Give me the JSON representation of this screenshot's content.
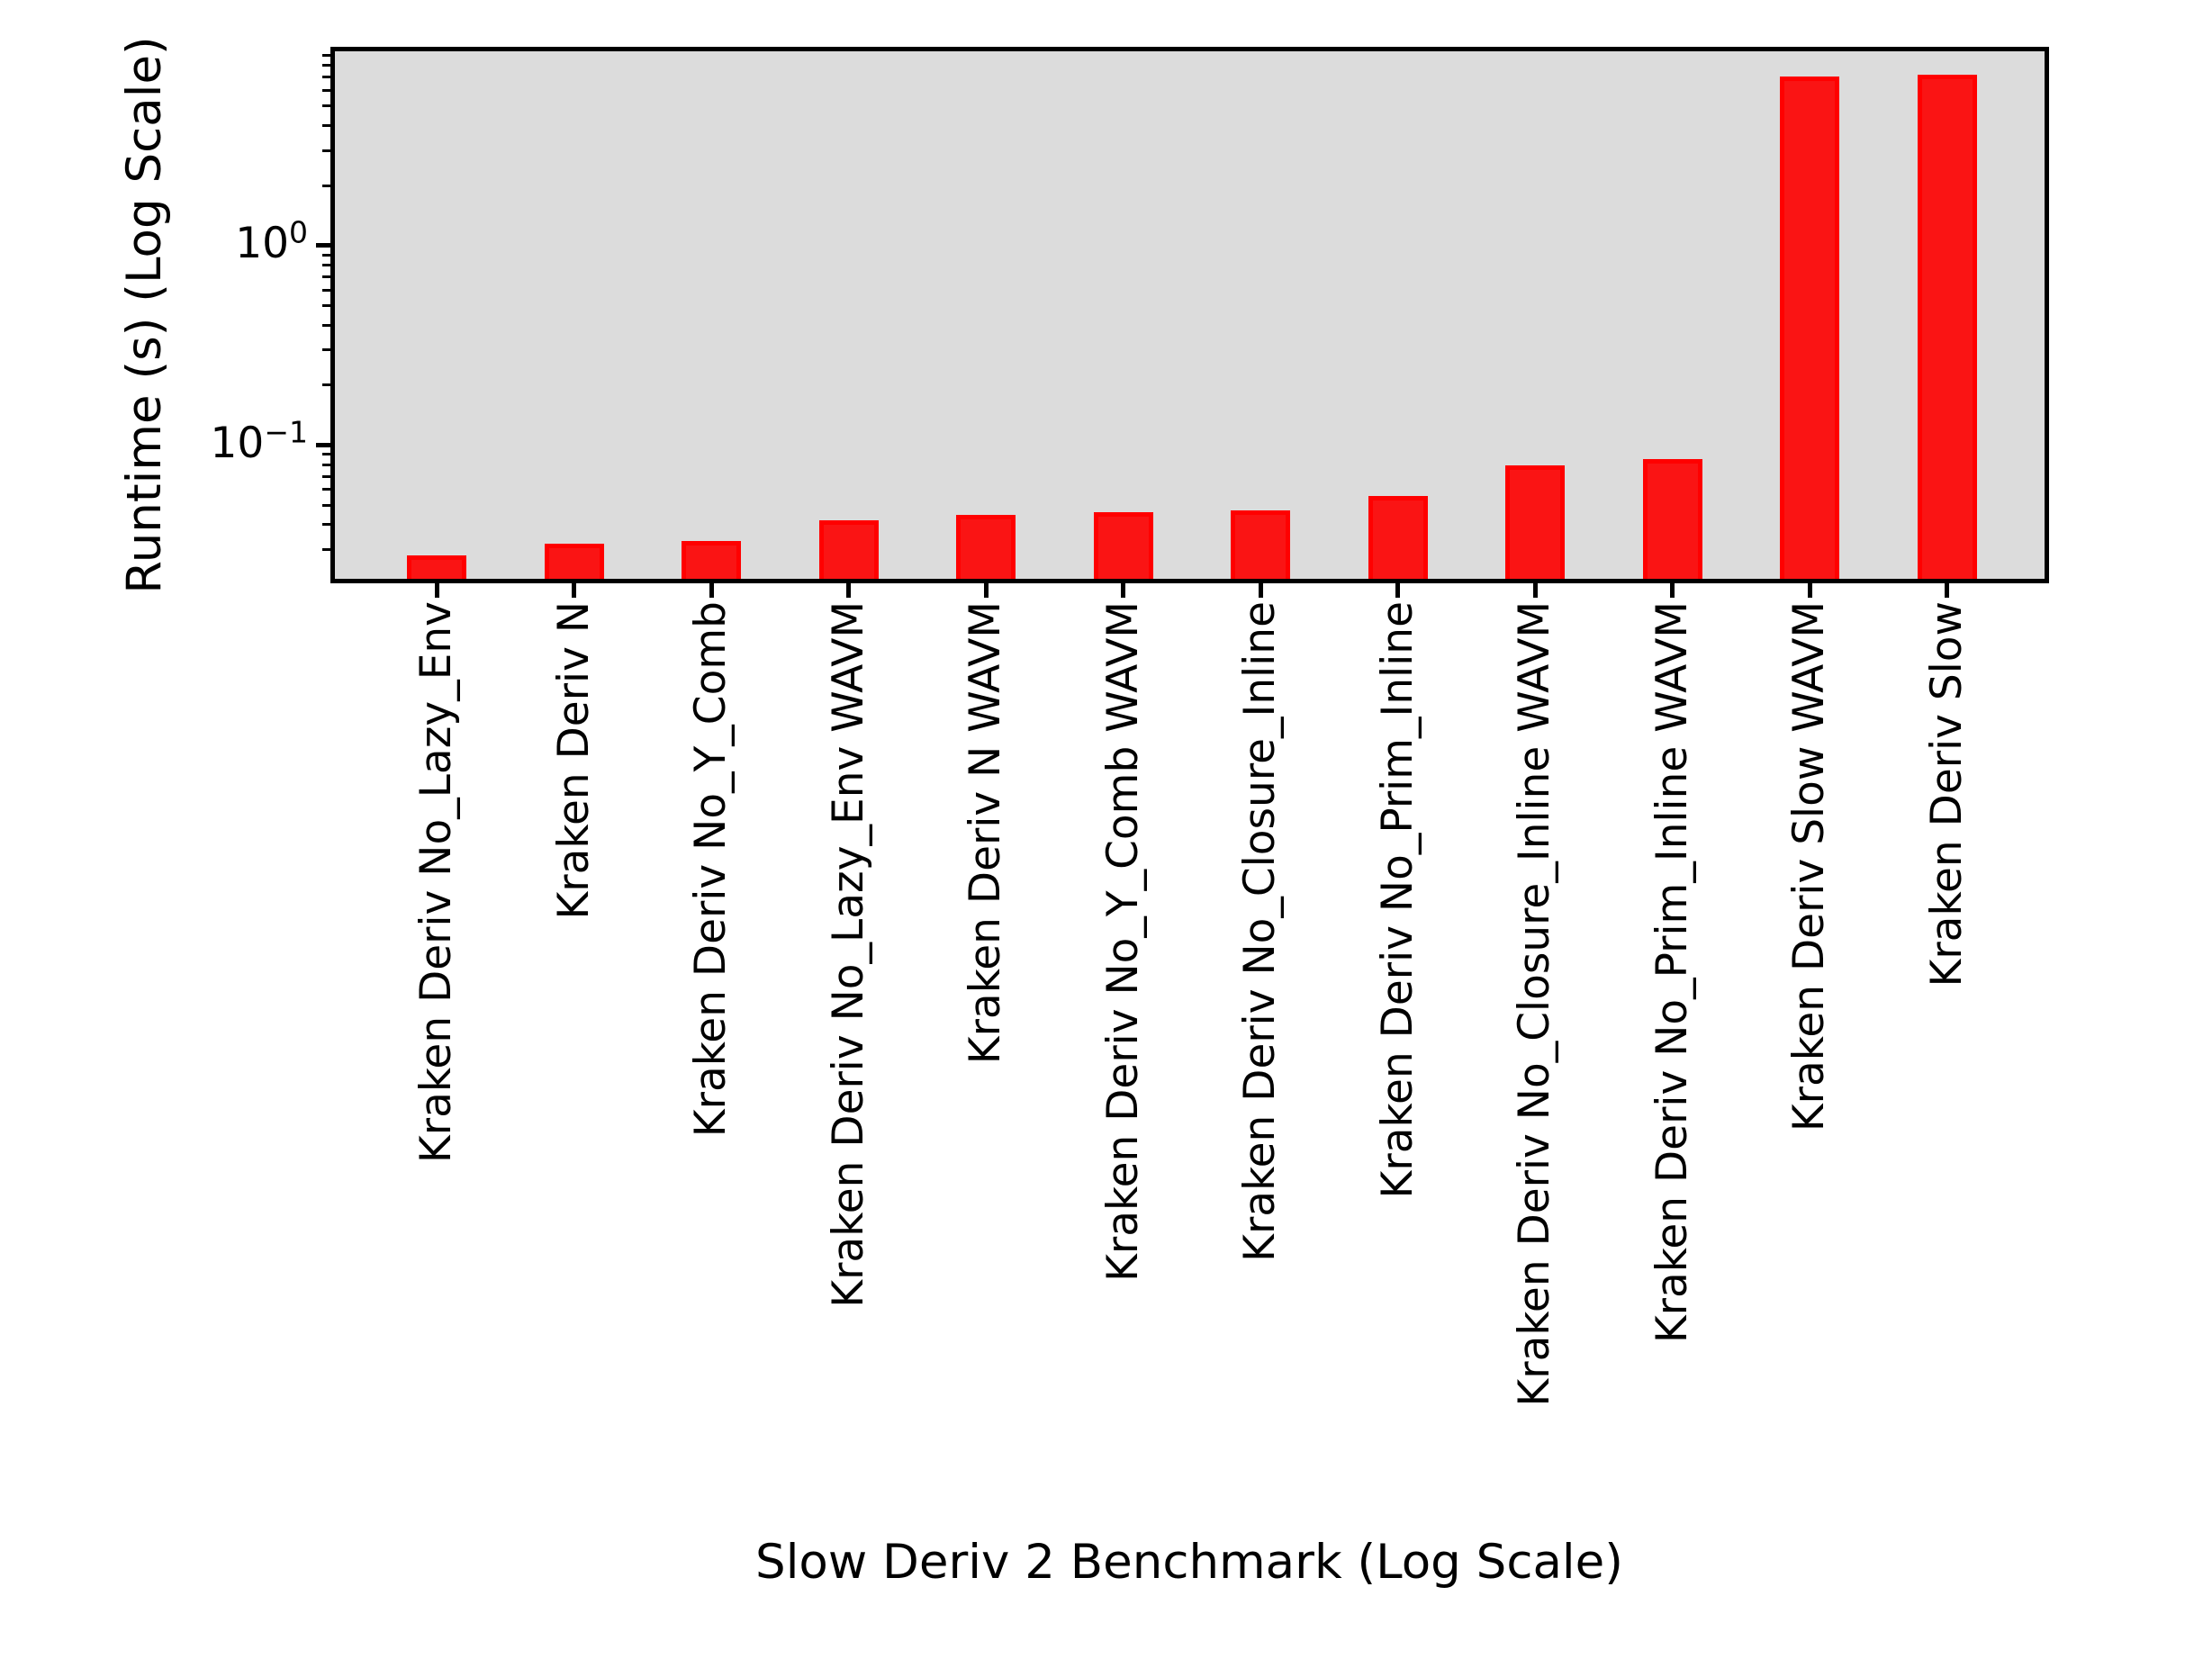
{
  "figure": {
    "background_color": "#ffffff",
    "plot_background_color": "#dcdcdc",
    "bar_fill_color": "#fa1414",
    "bar_edge_color": "#ff0000",
    "spine_color": "#000000"
  },
  "chart_data": {
    "type": "bar",
    "title": "",
    "xlabel": "Slow Deriv 2 Benchmark (Log Scale)",
    "ylabel": "Runtime (s) (Log Scale)",
    "yscale": "log",
    "ylim": [
      0.021,
      9.6
    ],
    "grid": false,
    "legend_position": "upper right",
    "legend_entries": [],
    "categories": [
      "Kraken Deriv No_Lazy_Env",
      "Kraken Deriv N",
      "Kraken Deriv No_Y_Comb",
      "Kraken Deriv No_Lazy_Env WAVM",
      "Kraken Deriv N WAVM",
      "Kraken Deriv No_Y_Comb WAVM",
      "Kraken Deriv No_Closure_Inline",
      "Kraken Deriv No_Prim_Inline",
      "Kraken Deriv No_Closure_Inline WAVM",
      "Kraken Deriv No_Prim_Inline WAVM",
      "Kraken Deriv Slow WAVM",
      "Kraken Deriv Slow"
    ],
    "values": [
      0.028,
      0.032,
      0.033,
      0.042,
      0.045,
      0.046,
      0.047,
      0.056,
      0.079,
      0.085,
      7.0,
      7.2
    ],
    "y_ticks": [
      {
        "value": 1,
        "base": "10",
        "exp": "0"
      },
      {
        "value": 0.1,
        "base": "10",
        "exp": "−1"
      }
    ]
  }
}
